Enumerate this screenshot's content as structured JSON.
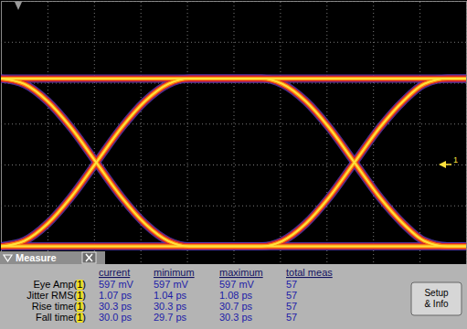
{
  "chart_data": {
    "type": "line",
    "xlim": [
      0,
      10
    ],
    "ylim": [
      -4,
      4
    ],
    "xticks": [
      0,
      1,
      2,
      3,
      4,
      5,
      6,
      7,
      8,
      9,
      10
    ],
    "yticks": [
      -4,
      -3,
      -2,
      -1,
      0,
      1,
      2,
      3,
      4
    ],
    "grid": true,
    "tick_labels": false,
    "color": "#ffe23c",
    "annotations": [
      "1"
    ],
    "x": [
      0,
      0.5,
      1,
      1.5,
      2.05,
      2.6,
      3.1,
      3.6,
      4.05,
      4.8,
      5.6,
      6.05,
      6.55,
      7.05,
      7.6,
      8.15,
      8.65,
      9.1,
      9.6,
      10
    ],
    "series": [
      {
        "values": [
          -2.0,
          -2.0,
          -2.0,
          -2.0,
          -2.0,
          -2.0,
          -2.0,
          -2.0,
          -2.0,
          -2.0,
          -2.0,
          -2.0,
          -2.0,
          -2.0,
          -2.0,
          -2.0,
          -2.0,
          -2.0,
          -2.0,
          -2.0
        ]
      },
      {
        "values": [
          -2.0,
          -2.0,
          -2.0,
          -2.0,
          -2.0,
          -2.0,
          -2.0,
          -2.0,
          -2.0,
          -2.0,
          -2.0,
          -1.87,
          -1.45,
          -0.81,
          0.05,
          0.91,
          1.55,
          1.97,
          2.1,
          2.1
        ]
      },
      {
        "values": [
          -2.0,
          -1.87,
          -1.45,
          -0.81,
          0.05,
          0.91,
          1.55,
          1.97,
          2.1,
          2.1,
          2.1,
          1.97,
          1.55,
          0.91,
          0.05,
          -0.81,
          -1.45,
          -1.87,
          -2.0,
          -2.0
        ]
      },
      {
        "values": [
          -2.0,
          -1.87,
          -1.45,
          -0.81,
          0.05,
          0.91,
          1.55,
          1.97,
          2.1,
          2.1,
          2.1,
          2.1,
          2.1,
          2.1,
          2.1,
          2.1,
          2.1,
          2.1,
          2.1,
          2.1
        ]
      },
      {
        "values": [
          2.1,
          1.97,
          1.55,
          0.91,
          0.05,
          -0.81,
          -1.45,
          -1.87,
          -2.0,
          -2.0,
          -2.0,
          -2.0,
          -2.0,
          -2.0,
          -2.0,
          -2.0,
          -2.0,
          -2.0,
          -2.0,
          -2.0
        ]
      },
      {
        "values": [
          2.1,
          1.97,
          1.55,
          0.91,
          0.05,
          -0.81,
          -1.45,
          -1.87,
          -2.0,
          -2.0,
          -2.0,
          -1.87,
          -1.45,
          -0.81,
          0.05,
          0.91,
          1.55,
          1.97,
          2.1,
          2.1
        ]
      },
      {
        "values": [
          2.1,
          2.1,
          2.1,
          2.1,
          2.1,
          2.1,
          2.1,
          2.1,
          2.1,
          2.1,
          2.1,
          1.97,
          1.55,
          0.91,
          0.05,
          -0.81,
          -1.45,
          -1.87,
          -2.0,
          -2.0
        ]
      },
      {
        "values": [
          2.1,
          2.1,
          2.1,
          2.1,
          2.1,
          2.1,
          2.1,
          2.1,
          2.1,
          2.1,
          2.1,
          2.1,
          2.1,
          2.1,
          2.1,
          2.1,
          2.1,
          2.1,
          2.1,
          2.1
        ]
      }
    ]
  },
  "measure": {
    "title": "Measure",
    "columns": [
      "current",
      "minimum",
      "maximum",
      "total meas"
    ],
    "rows": [
      {
        "label": "Eye Amp(1)",
        "values": [
          "597 mV",
          "597 mV",
          "597 mV",
          57
        ]
      },
      {
        "label": "Jitter RMS(1)",
        "values": [
          "1.07 ps",
          "1.04 ps",
          "1.08 ps",
          57
        ]
      },
      {
        "label": "Rise time(1)",
        "values": [
          "30.3 ps",
          "30.3 ps",
          "30.7 ps",
          57
        ]
      },
      {
        "label": "Fall time(1)",
        "values": [
          "30.0 ps",
          "29.7 ps",
          "30.3 ps",
          57
        ]
      }
    ],
    "button": "Setup & Info"
  }
}
